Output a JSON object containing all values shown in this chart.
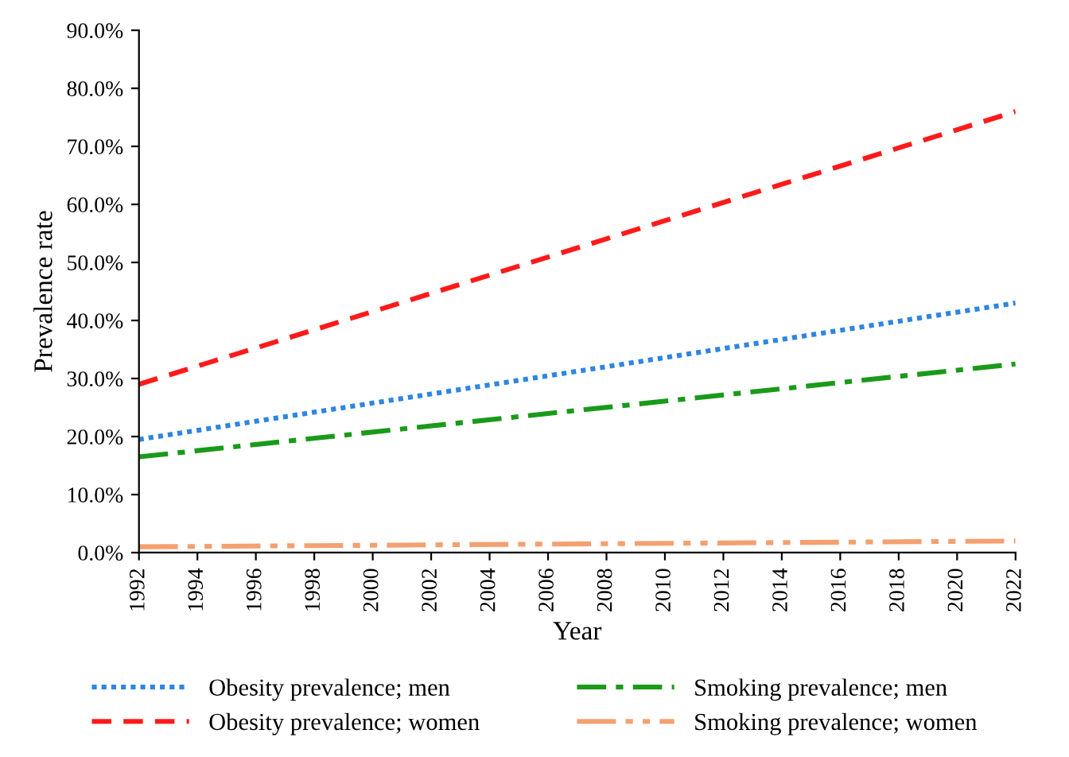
{
  "chart_data": {
    "type": "line",
    "xlabel": "Year",
    "ylabel": "Prevalence rate",
    "x": [
      1992,
      2022
    ],
    "xlim": [
      1992,
      2022
    ],
    "xticks": [
      1992,
      1994,
      1996,
      1998,
      2000,
      2002,
      2004,
      2006,
      2008,
      2010,
      2012,
      2014,
      2016,
      2018,
      2020,
      2022
    ],
    "ylim": [
      0,
      90
    ],
    "yticks": [
      {
        "value": 0,
        "label": "0.0%"
      },
      {
        "value": 10,
        "label": "10.0%"
      },
      {
        "value": 20,
        "label": "20.0%"
      },
      {
        "value": 30,
        "label": "30.0%"
      },
      {
        "value": 40,
        "label": "40.0%"
      },
      {
        "value": 50,
        "label": "50.0%"
      },
      {
        "value": 60,
        "label": "60.0%"
      },
      {
        "value": 70,
        "label": "70.0%"
      },
      {
        "value": 80,
        "label": "80.0%"
      },
      {
        "value": 90,
        "label": "90.0%"
      }
    ],
    "grid": false,
    "legend": "bottom",
    "marker": "none",
    "series": [
      {
        "name": "Obesity prevalence; men",
        "color": "#2e86de",
        "line_style": "dotted",
        "values": [
          19.5,
          43
        ]
      },
      {
        "name": "Obesity prevalence; women",
        "color": "#ff1a1a",
        "line_style": "dashed",
        "values": [
          29,
          76
        ]
      },
      {
        "name": "Smoking prevalence; men",
        "color": "#1a9a1a",
        "line_style": "dashdot",
        "values": [
          16.5,
          32.5
        ]
      },
      {
        "name": "Smoking prevalence; women",
        "color": "#f4a070",
        "line_style": "dashdotdot",
        "values": [
          1,
          2
        ]
      }
    ]
  }
}
